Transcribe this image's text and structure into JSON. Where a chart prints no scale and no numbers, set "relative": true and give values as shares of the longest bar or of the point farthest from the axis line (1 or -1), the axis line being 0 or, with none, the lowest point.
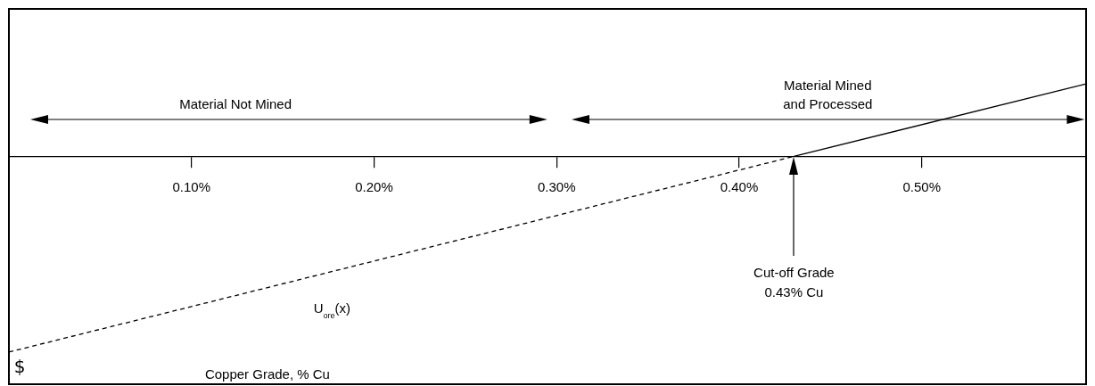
{
  "chart_data": {
    "type": "line",
    "relative": true,
    "xlabel": "Copper Grade, % Cu",
    "xlim": [
      0,
      0.59
    ],
    "xticks": [
      {
        "value": 0.1,
        "label": "0.10%"
      },
      {
        "value": 0.2,
        "label": "0.20%"
      },
      {
        "value": 0.3,
        "label": "0.30%"
      },
      {
        "value": 0.4,
        "label": "0.40%"
      },
      {
        "value": 0.5,
        "label": "0.50%"
      }
    ],
    "grid": false,
    "legend": false,
    "marker": "none",
    "series": [
      {
        "x": [
          0,
          0.43
        ],
        "values": [
          -1,
          0
        ],
        "color": "#000000",
        "line_style": "dashed"
      },
      {
        "x": [
          0.43,
          0.59
        ],
        "values": [
          0,
          0.37
        ],
        "color": "#000000",
        "line_style": "solid"
      }
    ],
    "annotations": [
      "Material Not Mined",
      "Material Mined\nand Processed",
      "Cut-off Grade\n0.43% Cu",
      "U$_{ore}$(x)",
      "$"
    ]
  }
}
